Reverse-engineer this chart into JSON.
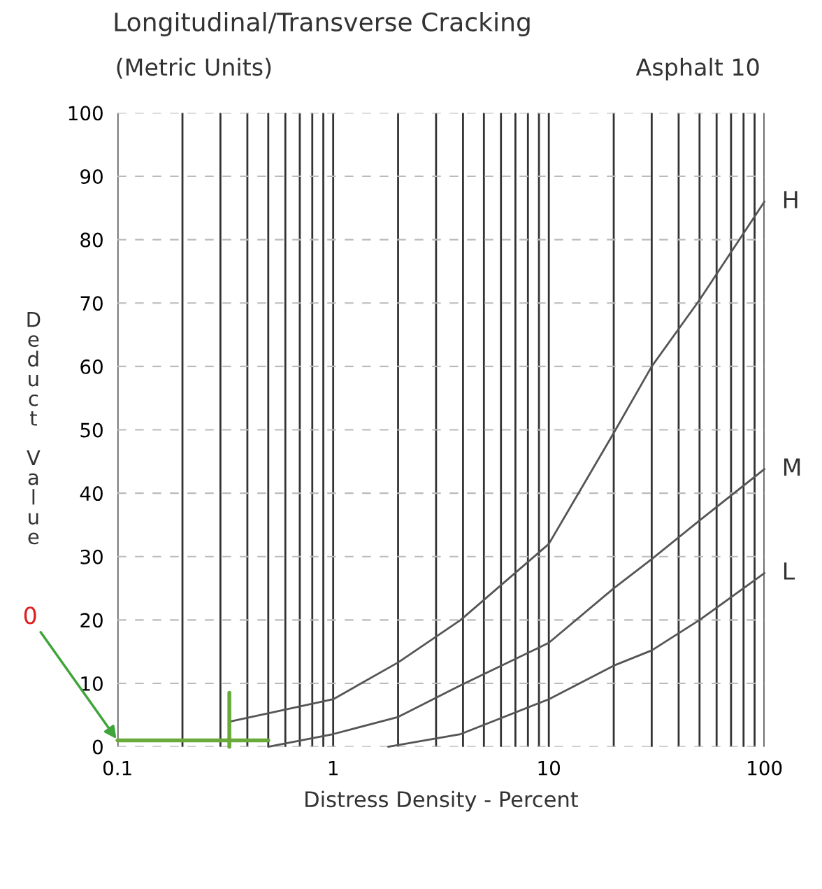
{
  "chart_data": {
    "type": "line",
    "title": "Longitudinal/Transverse Cracking",
    "subtitle": "(Metric Units)",
    "xlabel": "Distress Density - Percent",
    "ylabel": "Deduct Value",
    "annotations": [
      "Asphalt 10",
      {
        "text": "0",
        "x": 0.1,
        "y": 1
      }
    ],
    "log": "x",
    "xlim": [
      0.1,
      100
    ],
    "ylim": [
      0,
      100
    ],
    "xticks": [
      "0.1",
      {
        "value": 0.2,
        "label": null
      },
      {
        "value": 0.3,
        "label": null
      },
      {
        "value": 0.4,
        "label": null
      },
      {
        "value": 0.5,
        "label": null
      },
      {
        "value": 0.6,
        "label": null
      },
      {
        "value": 0.7,
        "label": null
      },
      {
        "value": 0.8,
        "label": null
      },
      {
        "value": 0.9,
        "label": null
      },
      1,
      {
        "value": 2,
        "label": null
      },
      {
        "value": 3,
        "label": null
      },
      {
        "value": 4,
        "label": null
      },
      {
        "value": 5,
        "label": null
      },
      {
        "value": 6,
        "label": null
      },
      {
        "value": 7,
        "label": null
      },
      {
        "value": 8,
        "label": null
      },
      {
        "value": 9,
        "label": null
      },
      10,
      {
        "value": 20,
        "label": null
      },
      {
        "value": 30,
        "label": null
      },
      {
        "value": 40,
        "label": null
      },
      {
        "value": 50,
        "label": null
      },
      {
        "value": 60,
        "label": null
      },
      {
        "value": 70,
        "label": null
      },
      {
        "value": 80,
        "label": null
      },
      {
        "value": 90,
        "label": null
      },
      100
    ],
    "yticks": [
      0,
      10,
      20,
      30,
      40,
      50,
      60,
      70,
      80,
      90,
      100
    ],
    "grid": true,
    "legend": false,
    "series": [
      {
        "name": "H",
        "color": "#555555",
        "x": [
          0.335,
          1,
          2,
          3.9,
          10,
          20,
          30,
          50,
          100
        ],
        "values": [
          4,
          7.5,
          13.3,
          20,
          32,
          49.5,
          60,
          70.5,
          86
        ]
      },
      {
        "name": "M",
        "color": "#555555",
        "x": [
          0.5,
          1,
          2,
          3.9,
          10,
          20,
          30,
          50,
          100
        ],
        "values": [
          0,
          2,
          4.7,
          9.7,
          16.4,
          25,
          29.6,
          35.7,
          43.8
        ]
      },
      {
        "name": "L",
        "color": "#555555",
        "x": [
          1.8,
          3.9,
          10,
          20,
          30,
          50,
          100
        ],
        "values": [
          0,
          2,
          7.5,
          12.8,
          15.2,
          20,
          27.4
        ]
      },
      {
        "color": "#6aaa3a",
        "x": [
          0.1,
          0.5
        ],
        "values": [
          1,
          1
        ]
      },
      {
        "color": "#6aaa3a",
        "x": [
          0.33,
          0.33
        ],
        "values": [
          0,
          8.5
        ]
      }
    ]
  }
}
